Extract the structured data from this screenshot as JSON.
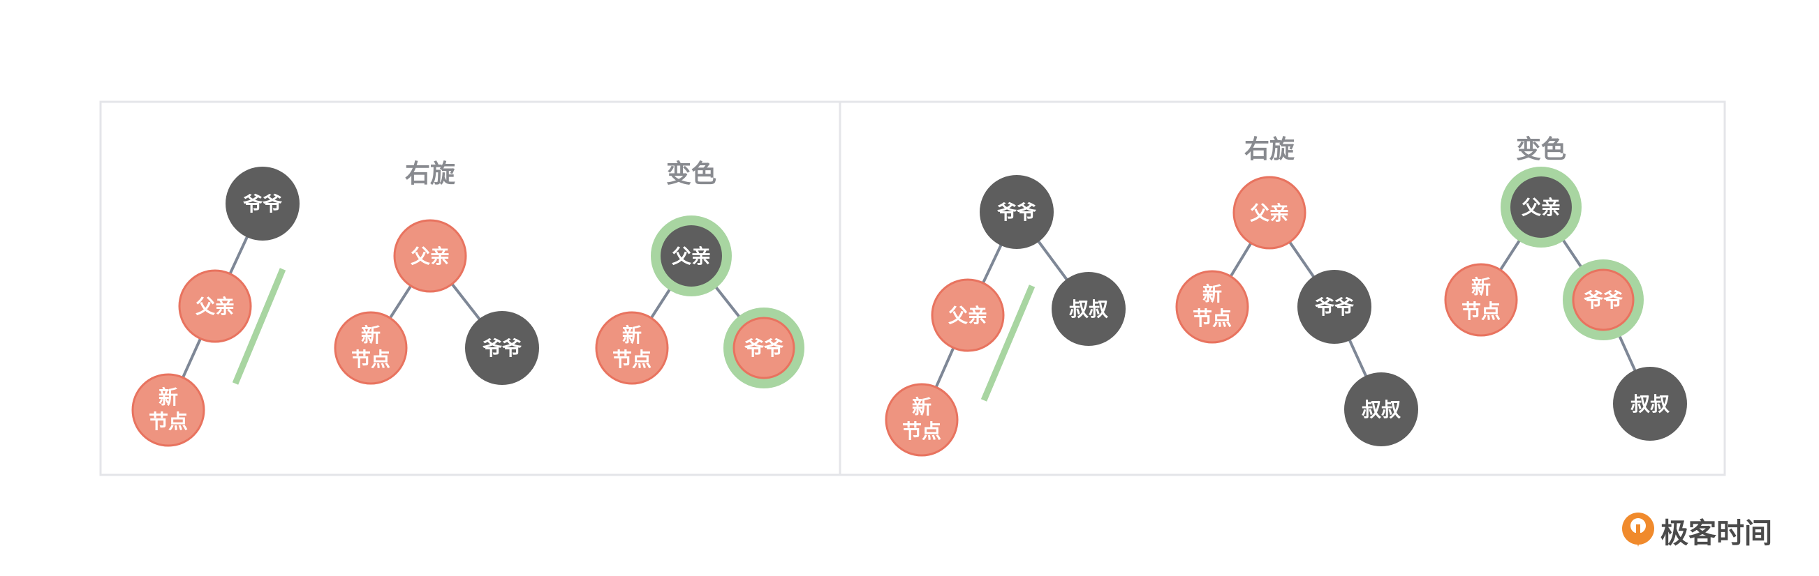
{
  "colors": {
    "red_node": "#ee9480",
    "red_stroke": "#e8735f",
    "black_node": "#5e5e5e",
    "highlight_ring": "#a8d5a1",
    "edge": "#7e8796",
    "marker": "#a8d5a1",
    "frame": "#e4e5e9",
    "title": "#888a8f",
    "logo_orange": "#f08a2c"
  },
  "labels": {
    "grandpa": "爷爷",
    "parent": "父亲",
    "uncle": "叔叔",
    "new_line1": "新",
    "new_line2": "节点"
  },
  "titles": {
    "left_rotate": "右旋",
    "left_recolor": "变色",
    "right_rotate": "右旋",
    "right_recolor": "变色"
  },
  "logo": {
    "text": "极客时间",
    "icon": "geektime-logo-icon"
  }
}
